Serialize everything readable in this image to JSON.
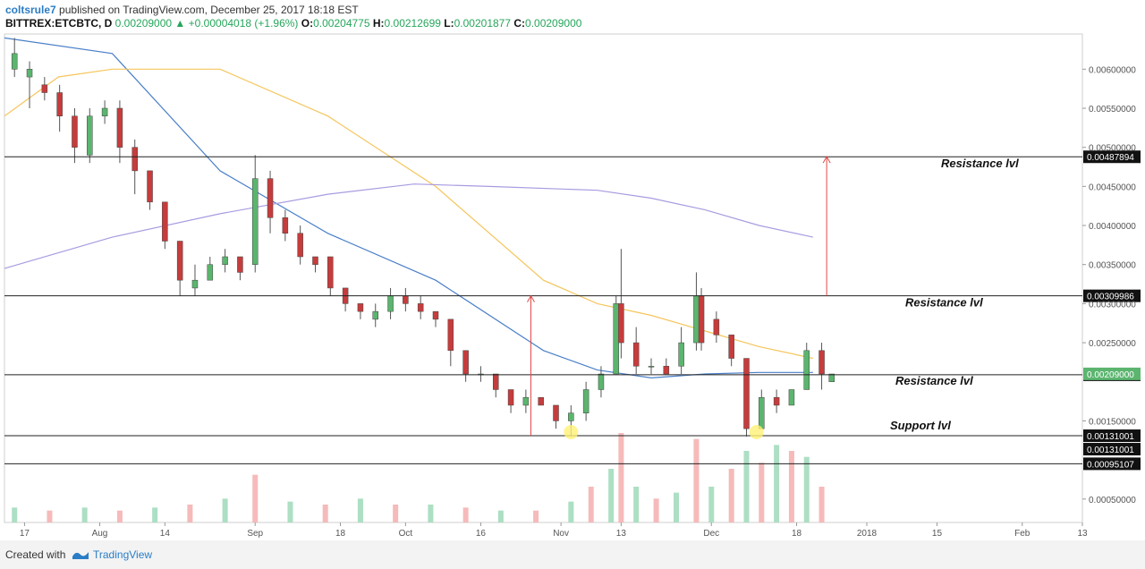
{
  "header": {
    "author": "coltsrule7",
    "published": "published on TradingView.com, December 25, 2017 18:18 EST",
    "symbol": "BITTREX:ETCBTC, D",
    "last_price": "0.00209000",
    "change": "+0.00004018 (+1.96%)",
    "o_label": "O:",
    "o_value": "0.00204775",
    "h_label": "H:",
    "h_value": "0.00212699",
    "l_label": "L:",
    "l_value": "0.00201877",
    "c_label": "C:",
    "c_value": "0.00209000"
  },
  "footer": {
    "created_with": "Created with",
    "brand": "TradingView"
  },
  "colors": {
    "up": "#26a65b",
    "up_body": "#5bb56e",
    "down_body": "#c63c3c",
    "vol_up": "#a3dcbd",
    "vol_down": "#f5b3b3",
    "ma_short": "#4a7fc8",
    "ma_mid": "#f5c55c",
    "ma_long": "#a99be0",
    "arrow": "#e04848",
    "highlight": "#fff176"
  },
  "chart_data": {
    "type": "candlestick",
    "symbol": "BITTREX:ETCBTC",
    "interval": "D",
    "ylim": [
      0.0002,
      0.00645
    ],
    "y_ticks": [
      "0.00050000",
      "0.00150000",
      "0.00250000",
      "0.00300000",
      "0.00350000",
      "0.00400000",
      "0.00450000",
      "0.00500000",
      "0.00550000",
      "0.00600000"
    ],
    "x_ticks": [
      "17",
      "Aug",
      "14",
      "Sep",
      "18",
      "Oct",
      "16",
      "Nov",
      "13",
      "Dec",
      "18",
      "2018",
      "15",
      "Feb",
      "13"
    ],
    "x_tick_dates": [
      "2017-07-17",
      "2017-08-01",
      "2017-08-14",
      "2017-09-01",
      "2017-09-18",
      "2017-10-01",
      "2017-10-16",
      "2017-11-01",
      "2017-11-13",
      "2017-12-01",
      "2017-12-18",
      "2018-01-01",
      "2018-01-15",
      "2018-02-01",
      "2018-02-13"
    ],
    "x_start": "2017-07-13",
    "x_end": "2018-02-13",
    "levels": [
      {
        "price": 0.00487894,
        "tag": "0.00487894",
        "annotation": "Resistance lvl"
      },
      {
        "price": 0.00309986,
        "tag": "0.00309986",
        "annotation": "Resistance lvl"
      },
      {
        "price": 0.00209002,
        "tag": "0.00209002",
        "annotation": "Resistance lvl"
      },
      {
        "price": 0.00131001,
        "tag": "0.00131001",
        "annotation": "Support lvl"
      },
      {
        "price": 0.00095107,
        "tag": "0.00095107",
        "annotation": ""
      }
    ],
    "last_price_tag": "0.00209000",
    "duplicate_tag": "0.00131001",
    "arrows": [
      {
        "date": "2017-10-26",
        "from": 0.00131,
        "to": 0.0031
      },
      {
        "date": "2017-12-24",
        "from": 0.0031,
        "to": 0.00488
      }
    ],
    "highlights": [
      {
        "date": "2017-11-03",
        "price": 0.00131
      },
      {
        "date": "2017-12-10",
        "price": 0.00131
      }
    ],
    "candles": [
      [
        "2017-07-15",
        0.006,
        0.0064,
        0.0062,
        0.0059
      ],
      [
        "2017-07-18",
        0.0059,
        0.0061,
        0.006,
        0.0055
      ],
      [
        "2017-07-21",
        0.0058,
        0.0059,
        0.0057,
        0.0056
      ],
      [
        "2017-07-24",
        0.0057,
        0.0058,
        0.0054,
        0.0052
      ],
      [
        "2017-07-27",
        0.0054,
        0.0055,
        0.005,
        0.0048
      ],
      [
        "2017-07-30",
        0.0049,
        0.0055,
        0.0054,
        0.0048
      ],
      [
        "2017-08-02",
        0.0054,
        0.0056,
        0.0055,
        0.0053
      ],
      [
        "2017-08-05",
        0.0055,
        0.0056,
        0.005,
        0.0048
      ],
      [
        "2017-08-08",
        0.005,
        0.0051,
        0.0047,
        0.0044
      ],
      [
        "2017-08-11",
        0.0047,
        0.0047,
        0.0043,
        0.0042
      ],
      [
        "2017-08-14",
        0.0043,
        0.0043,
        0.0038,
        0.0037
      ],
      [
        "2017-08-17",
        0.0038,
        0.0038,
        0.0033,
        0.0031
      ],
      [
        "2017-08-20",
        0.0032,
        0.0035,
        0.0033,
        0.0031
      ],
      [
        "2017-08-23",
        0.0033,
        0.0036,
        0.0035,
        0.0033
      ],
      [
        "2017-08-26",
        0.0035,
        0.0037,
        0.0036,
        0.0034
      ],
      [
        "2017-08-29",
        0.0036,
        0.0036,
        0.0034,
        0.0033
      ],
      [
        "2017-09-01",
        0.0035,
        0.0049,
        0.0046,
        0.0034
      ],
      [
        "2017-09-04",
        0.0046,
        0.0047,
        0.0041,
        0.0039
      ],
      [
        "2017-09-07",
        0.0041,
        0.0042,
        0.0039,
        0.0038
      ],
      [
        "2017-09-10",
        0.0039,
        0.004,
        0.0036,
        0.0035
      ],
      [
        "2017-09-13",
        0.0036,
        0.0036,
        0.0035,
        0.0034
      ],
      [
        "2017-09-16",
        0.0036,
        0.0036,
        0.0032,
        0.0031
      ],
      [
        "2017-09-19",
        0.0032,
        0.0032,
        0.003,
        0.0029
      ],
      [
        "2017-09-22",
        0.003,
        0.003,
        0.0029,
        0.0028
      ],
      [
        "2017-09-25",
        0.0028,
        0.003,
        0.0029,
        0.0027
      ],
      [
        "2017-09-28",
        0.0029,
        0.0032,
        0.0031,
        0.0028
      ],
      [
        "2017-10-01",
        0.0031,
        0.0032,
        0.003,
        0.0029
      ],
      [
        "2017-10-04",
        0.003,
        0.0031,
        0.0029,
        0.0028
      ],
      [
        "2017-10-07",
        0.0029,
        0.0029,
        0.0028,
        0.0027
      ],
      [
        "2017-10-10",
        0.0028,
        0.0028,
        0.0024,
        0.0022
      ],
      [
        "2017-10-13",
        0.0024,
        0.0024,
        0.0021,
        0.002
      ],
      [
        "2017-10-16",
        0.0021,
        0.0022,
        0.0021,
        0.002
      ],
      [
        "2017-10-19",
        0.0021,
        0.0021,
        0.0019,
        0.0018
      ],
      [
        "2017-10-22",
        0.0019,
        0.0019,
        0.0017,
        0.0016
      ],
      [
        "2017-10-25",
        0.0017,
        0.0019,
        0.0018,
        0.0016
      ],
      [
        "2017-10-28",
        0.0018,
        0.0018,
        0.0017,
        0.0017
      ],
      [
        "2017-10-31",
        0.0017,
        0.0017,
        0.0015,
        0.0014
      ],
      [
        "2017-11-03",
        0.0015,
        0.0017,
        0.0016,
        0.0013
      ],
      [
        "2017-11-06",
        0.0016,
        0.002,
        0.0019,
        0.0015
      ],
      [
        "2017-11-09",
        0.0019,
        0.0022,
        0.0021,
        0.0018
      ],
      [
        "2017-11-12",
        0.0021,
        0.0031,
        0.003,
        0.0021
      ],
      [
        "2017-11-13",
        0.003,
        0.0037,
        0.0025,
        0.0023
      ],
      [
        "2017-11-16",
        0.0025,
        0.0027,
        0.0022,
        0.0021
      ],
      [
        "2017-11-19",
        0.0022,
        0.0023,
        0.0022,
        0.0021
      ],
      [
        "2017-11-22",
        0.0022,
        0.0023,
        0.0021,
        0.0021
      ],
      [
        "2017-11-25",
        0.0022,
        0.0027,
        0.0025,
        0.0021
      ],
      [
        "2017-11-28",
        0.0025,
        0.0034,
        0.0031,
        0.0024
      ],
      [
        "2017-11-29",
        0.0031,
        0.0032,
        0.0025,
        0.0024
      ],
      [
        "2017-12-02",
        0.0028,
        0.0029,
        0.0026,
        0.0025
      ],
      [
        "2017-12-05",
        0.0026,
        0.0026,
        0.0023,
        0.0022
      ],
      [
        "2017-12-08",
        0.0023,
        0.0023,
        0.0014,
        0.0013
      ],
      [
        "2017-12-11",
        0.0014,
        0.0019,
        0.0018,
        0.0014
      ],
      [
        "2017-12-14",
        0.0018,
        0.0019,
        0.0017,
        0.0016
      ],
      [
        "2017-12-17",
        0.0017,
        0.0019,
        0.0019,
        0.0017
      ],
      [
        "2017-12-20",
        0.0019,
        0.0025,
        0.0024,
        0.0019
      ],
      [
        "2017-12-23",
        0.0024,
        0.0025,
        0.0021,
        0.0019
      ],
      [
        "2017-12-25",
        0.002,
        0.0021,
        0.0021,
        0.002
      ]
    ],
    "volume": [
      [
        "2017-07-15",
        0.25
      ],
      [
        "2017-07-22",
        0.2
      ],
      [
        "2017-07-29",
        0.25
      ],
      [
        "2017-08-05",
        0.2
      ],
      [
        "2017-08-12",
        0.25
      ],
      [
        "2017-08-19",
        0.3
      ],
      [
        "2017-08-26",
        0.4
      ],
      [
        "2017-09-01",
        0.8
      ],
      [
        "2017-09-08",
        0.35
      ],
      [
        "2017-09-15",
        0.3
      ],
      [
        "2017-09-22",
        0.4
      ],
      [
        "2017-09-29",
        0.3
      ],
      [
        "2017-10-06",
        0.3
      ],
      [
        "2017-10-13",
        0.25
      ],
      [
        "2017-10-20",
        0.2
      ],
      [
        "2017-10-27",
        0.2
      ],
      [
        "2017-11-03",
        0.35
      ],
      [
        "2017-11-07",
        0.6
      ],
      [
        "2017-11-11",
        0.9
      ],
      [
        "2017-11-13",
        1.5
      ],
      [
        "2017-11-16",
        0.6
      ],
      [
        "2017-11-20",
        0.4
      ],
      [
        "2017-11-24",
        0.5
      ],
      [
        "2017-11-28",
        1.4
      ],
      [
        "2017-12-01",
        0.6
      ],
      [
        "2017-12-05",
        0.9
      ],
      [
        "2017-12-08",
        1.2
      ],
      [
        "2017-12-11",
        1.0
      ],
      [
        "2017-12-14",
        1.3
      ],
      [
        "2017-12-17",
        1.2
      ],
      [
        "2017-12-20",
        1.1
      ],
      [
        "2017-12-23",
        0.6
      ]
    ],
    "ma_short": [
      [
        0.0,
        0.0064
      ],
      [
        0.1,
        0.0062
      ],
      [
        0.2,
        0.0047
      ],
      [
        0.3,
        0.0039
      ],
      [
        0.4,
        0.0033
      ],
      [
        0.5,
        0.0024
      ],
      [
        0.55,
        0.00215
      ],
      [
        0.6,
        0.00205
      ],
      [
        0.65,
        0.0021
      ],
      [
        0.7,
        0.00212
      ],
      [
        0.75,
        0.00212
      ]
    ],
    "ma_mid": [
      [
        0.0,
        0.0054
      ],
      [
        0.05,
        0.0059
      ],
      [
        0.1,
        0.006
      ],
      [
        0.2,
        0.006
      ],
      [
        0.3,
        0.0054
      ],
      [
        0.4,
        0.0045
      ],
      [
        0.5,
        0.0033
      ],
      [
        0.55,
        0.003
      ],
      [
        0.6,
        0.00285
      ],
      [
        0.65,
        0.00265
      ],
      [
        0.7,
        0.00245
      ],
      [
        0.75,
        0.0023
      ]
    ],
    "ma_long": [
      [
        0.0,
        0.00345
      ],
      [
        0.1,
        0.00385
      ],
      [
        0.2,
        0.00415
      ],
      [
        0.3,
        0.0044
      ],
      [
        0.38,
        0.00453
      ],
      [
        0.45,
        0.0045
      ],
      [
        0.55,
        0.00445
      ],
      [
        0.6,
        0.00435
      ],
      [
        0.65,
        0.0042
      ],
      [
        0.7,
        0.004
      ],
      [
        0.75,
        0.00385
      ]
    ]
  }
}
